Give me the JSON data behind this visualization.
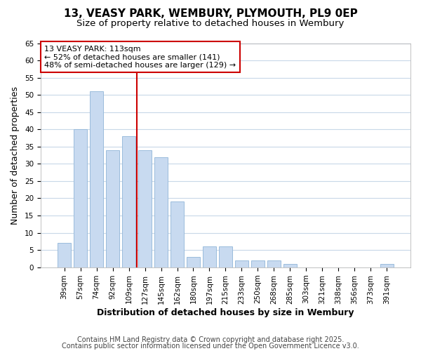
{
  "title1": "13, VEASY PARK, WEMBURY, PLYMOUTH, PL9 0EP",
  "title2": "Size of property relative to detached houses in Wembury",
  "xlabel": "Distribution of detached houses by size in Wembury",
  "ylabel": "Number of detached properties",
  "categories": [
    "39sqm",
    "57sqm",
    "74sqm",
    "92sqm",
    "109sqm",
    "127sqm",
    "145sqm",
    "162sqm",
    "180sqm",
    "197sqm",
    "215sqm",
    "233sqm",
    "250sqm",
    "268sqm",
    "285sqm",
    "303sqm",
    "321sqm",
    "338sqm",
    "356sqm",
    "373sqm",
    "391sqm"
  ],
  "values": [
    7,
    40,
    51,
    34,
    38,
    34,
    32,
    19,
    3,
    6,
    6,
    2,
    2,
    2,
    1,
    0,
    0,
    0,
    0,
    0,
    1
  ],
  "bar_color": "#c8daf0",
  "bar_edge_color": "#9abcdc",
  "vline_x": 4.5,
  "vline_color": "#cc0000",
  "annotation_line1": "13 VEASY PARK: 113sqm",
  "annotation_line2": "← 52% of detached houses are smaller (141)",
  "annotation_line3": "48% of semi-detached houses are larger (129) →",
  "box_edge_color": "#cc0000",
  "bg_color": "#ffffff",
  "plot_bg_color": "#ffffff",
  "grid_color": "#c8d8e8",
  "ylim": [
    0,
    65
  ],
  "yticks": [
    0,
    5,
    10,
    15,
    20,
    25,
    30,
    35,
    40,
    45,
    50,
    55,
    60,
    65
  ],
  "footer1": "Contains HM Land Registry data © Crown copyright and database right 2025.",
  "footer2": "Contains public sector information licensed under the Open Government Licence v3.0.",
  "title_fontsize": 11,
  "subtitle_fontsize": 9.5,
  "axis_label_fontsize": 9,
  "tick_fontsize": 7.5,
  "footer_fontsize": 7,
  "annotation_fontsize": 8
}
